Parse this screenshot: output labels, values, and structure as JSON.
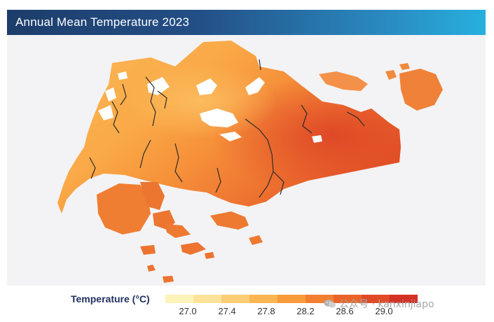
{
  "header": {
    "title": "Annual Mean Temperature 2023",
    "gradient": [
      "#1d3d6b",
      "#27b0de"
    ]
  },
  "map": {
    "region": "Singapore",
    "background": "#f3f3f5",
    "river_color": "#2b2b2b",
    "reservoir_color": "#ffffff",
    "icons": [
      "island-map",
      "river-lines",
      "reservoir-shapes"
    ]
  },
  "legend": {
    "title": "Temperature (°C)",
    "classes": [
      {
        "color": "#fdf3b8"
      },
      {
        "color": "#fde39a"
      },
      {
        "color": "#fccd74"
      },
      {
        "color": "#fbb553"
      },
      {
        "color": "#f89b3a"
      },
      {
        "color": "#f27e2f"
      },
      {
        "color": "#ea6428"
      },
      {
        "color": "#e04a26"
      },
      {
        "color": "#d33124"
      }
    ],
    "ticks": [
      "27.0",
      "27.4",
      "27.8",
      "28.2",
      "28.6",
      "29.0"
    ]
  },
  "watermark": {
    "text": "公众号 · kanxinjiapo",
    "icon": "wechat-icon"
  }
}
